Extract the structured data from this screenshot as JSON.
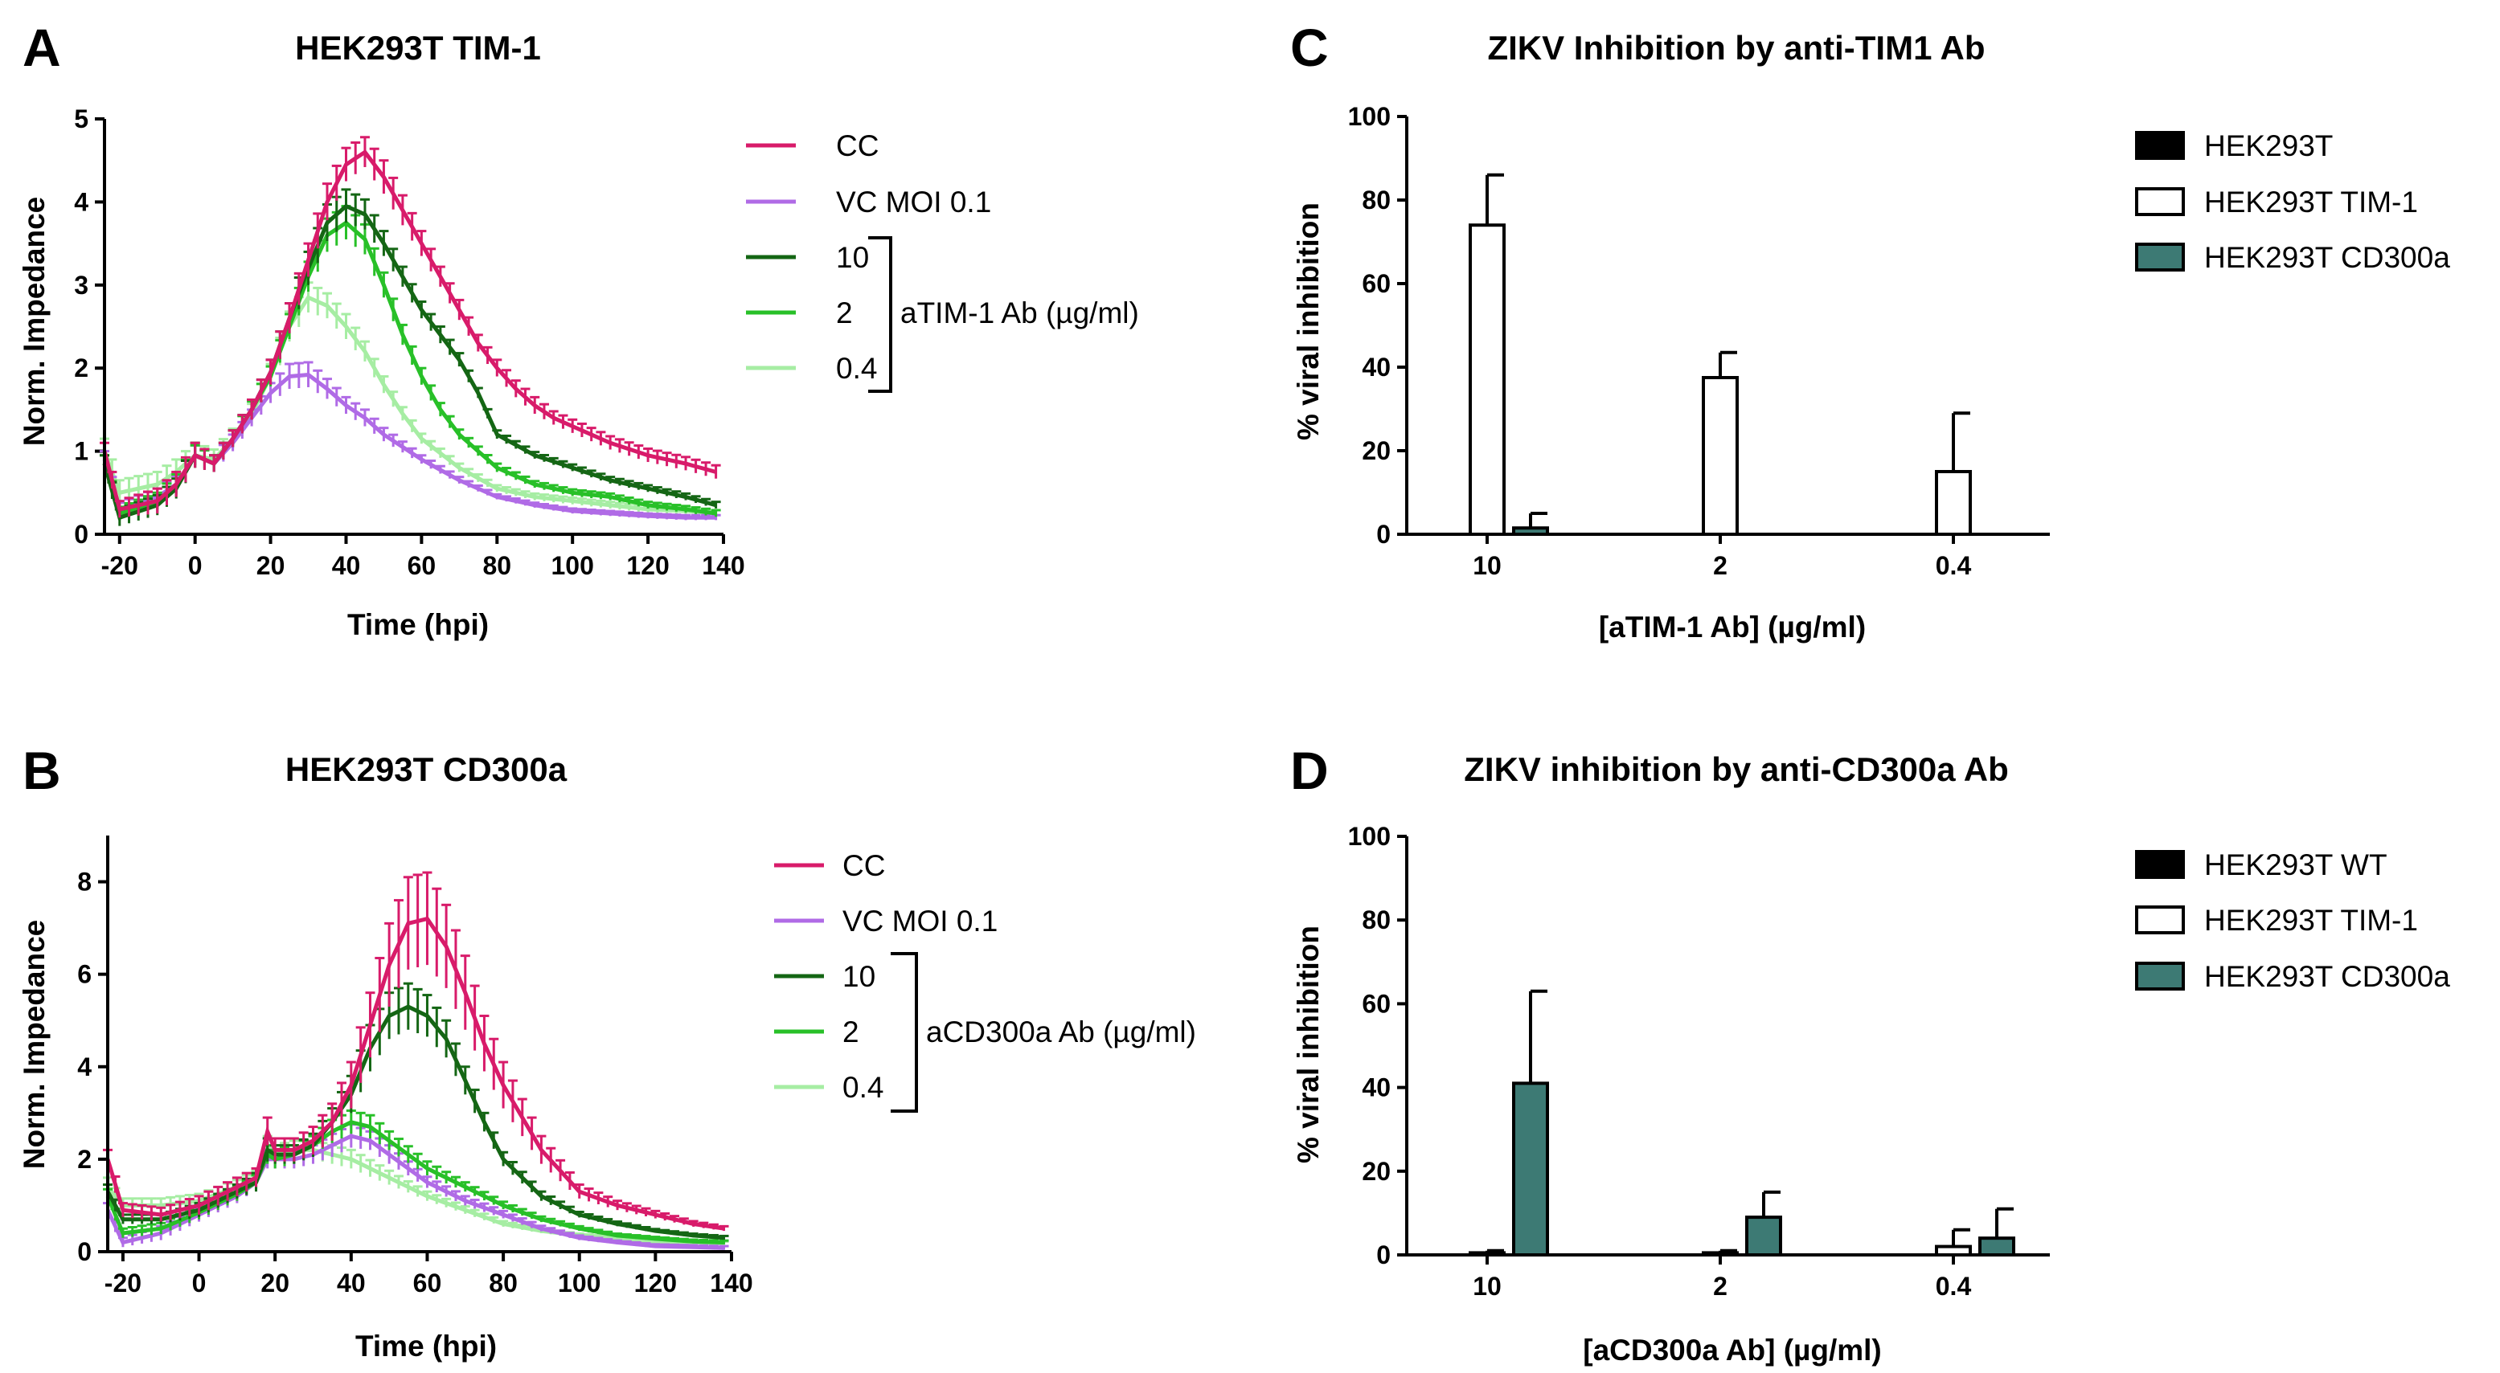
{
  "panels": [
    {
      "letter": "A"
    },
    {
      "letter": "B"
    },
    {
      "letter": "C"
    },
    {
      "letter": "D"
    }
  ],
  "colors": {
    "CC": "#d81b6a",
    "VC": "#b06be6",
    "d10": "#146614",
    "d2": "#28c028",
    "d04": "#a6eda3",
    "wt": "#000000",
    "tim1": "#ffffff",
    "cd300a": "#3d7a74"
  },
  "chart_data": [
    {
      "id": "A",
      "type": "line",
      "title": "HEK293T TIM-1",
      "xlabel": "Time (hpi)",
      "ylabel": "Norm. Impedance",
      "xlim": [
        -24,
        140
      ],
      "ylim": [
        0,
        5
      ],
      "xticks": [
        -20,
        0,
        20,
        40,
        60,
        80,
        100,
        120,
        140
      ],
      "yticks": [
        0,
        1,
        2,
        3,
        4,
        5
      ],
      "legend_group_label": "aTIM-1 Ab (µg/ml)",
      "series": [
        {
          "name": "CC",
          "color_key": "CC",
          "x": [
            -24,
            -20,
            -10,
            -5,
            0,
            5,
            10,
            15,
            20,
            25,
            30,
            35,
            40,
            45,
            50,
            55,
            60,
            65,
            70,
            75,
            80,
            85,
            90,
            95,
            100,
            110,
            120,
            130,
            138
          ],
          "y": [
            1.0,
            0.3,
            0.4,
            0.6,
            0.95,
            0.85,
            1.15,
            1.5,
            1.95,
            2.6,
            3.3,
            4.0,
            4.45,
            4.6,
            4.3,
            3.9,
            3.5,
            3.1,
            2.7,
            2.3,
            2.0,
            1.75,
            1.55,
            1.4,
            1.3,
            1.1,
            0.95,
            0.85,
            0.75
          ],
          "err": [
            0.1,
            0.1,
            0.15,
            0.15,
            0.15,
            0.1,
            0.1,
            0.12,
            0.15,
            0.18,
            0.2,
            0.22,
            0.2,
            0.18,
            0.2,
            0.18,
            0.15,
            0.12,
            0.12,
            0.1,
            0.1,
            0.1,
            0.1,
            0.08,
            0.08,
            0.08,
            0.08,
            0.08,
            0.08
          ]
        },
        {
          "name": "VC MOI 0.1",
          "color_key": "VC",
          "x": [
            -24,
            -20,
            -10,
            -5,
            0,
            5,
            10,
            15,
            20,
            25,
            30,
            35,
            40,
            45,
            50,
            60,
            70,
            80,
            90,
            100,
            110,
            120,
            130,
            138
          ],
          "y": [
            0.9,
            0.3,
            0.45,
            0.6,
            0.95,
            0.85,
            1.1,
            1.4,
            1.7,
            1.9,
            1.92,
            1.75,
            1.55,
            1.4,
            1.2,
            0.9,
            0.65,
            0.45,
            0.35,
            0.28,
            0.25,
            0.22,
            0.2,
            0.2
          ],
          "err": [
            0.1,
            0.08,
            0.1,
            0.1,
            0.12,
            0.1,
            0.1,
            0.1,
            0.12,
            0.15,
            0.15,
            0.12,
            0.1,
            0.1,
            0.08,
            0.05,
            0.04,
            0.03,
            0.03,
            0.03,
            0.03,
            0.03,
            0.03,
            0.03
          ]
        },
        {
          "name": "10",
          "color_key": "d10",
          "x": [
            -24,
            -20,
            -10,
            -5,
            0,
            5,
            10,
            15,
            20,
            25,
            30,
            35,
            40,
            45,
            50,
            55,
            60,
            65,
            70,
            75,
            80,
            90,
            100,
            110,
            120,
            130,
            138
          ],
          "y": [
            0.85,
            0.2,
            0.35,
            0.55,
            0.95,
            0.85,
            1.15,
            1.5,
            1.95,
            2.6,
            3.2,
            3.75,
            3.95,
            3.85,
            3.5,
            3.1,
            2.7,
            2.4,
            2.1,
            1.7,
            1.2,
            0.95,
            0.8,
            0.65,
            0.55,
            0.45,
            0.35
          ],
          "err": [
            0.1,
            0.1,
            0.12,
            0.12,
            0.15,
            0.1,
            0.1,
            0.12,
            0.15,
            0.18,
            0.2,
            0.22,
            0.2,
            0.18,
            0.15,
            0.12,
            0.1,
            0.1,
            0.08,
            0.06,
            0.05,
            0.04,
            0.04,
            0.04,
            0.04,
            0.04,
            0.04
          ]
        },
        {
          "name": "2",
          "color_key": "d2",
          "x": [
            -24,
            -20,
            -10,
            -5,
            0,
            5,
            10,
            15,
            20,
            25,
            30,
            35,
            40,
            45,
            50,
            55,
            60,
            65,
            70,
            80,
            90,
            100,
            110,
            120,
            130,
            138
          ],
          "y": [
            0.85,
            0.25,
            0.4,
            0.6,
            0.95,
            0.85,
            1.15,
            1.5,
            1.9,
            2.5,
            3.1,
            3.6,
            3.75,
            3.55,
            3.0,
            2.4,
            1.9,
            1.5,
            1.2,
            0.8,
            0.6,
            0.5,
            0.45,
            0.35,
            0.3,
            0.25
          ],
          "err": [
            0.1,
            0.08,
            0.1,
            0.12,
            0.12,
            0.1,
            0.1,
            0.1,
            0.12,
            0.15,
            0.18,
            0.2,
            0.2,
            0.18,
            0.15,
            0.12,
            0.1,
            0.08,
            0.06,
            0.05,
            0.04,
            0.04,
            0.04,
            0.04,
            0.04,
            0.04
          ]
        },
        {
          "name": "0.4",
          "color_key": "d04",
          "x": [
            -24,
            -20,
            -10,
            -5,
            0,
            5,
            10,
            15,
            20,
            25,
            30,
            35,
            40,
            45,
            50,
            55,
            60,
            70,
            80,
            90,
            100,
            110,
            120,
            130,
            138
          ],
          "y": [
            1.0,
            0.5,
            0.6,
            0.75,
            0.95,
            0.9,
            1.15,
            1.45,
            1.9,
            2.5,
            2.85,
            2.75,
            2.5,
            2.2,
            1.8,
            1.45,
            1.15,
            0.8,
            0.55,
            0.45,
            0.4,
            0.35,
            0.3,
            0.28,
            0.25
          ],
          "err": [
            0.15,
            0.15,
            0.15,
            0.15,
            0.15,
            0.12,
            0.12,
            0.12,
            0.15,
            0.18,
            0.18,
            0.15,
            0.15,
            0.12,
            0.1,
            0.08,
            0.06,
            0.05,
            0.04,
            0.04,
            0.04,
            0.04,
            0.04,
            0.04,
            0.04
          ]
        }
      ]
    },
    {
      "id": "B",
      "type": "line",
      "title": "HEK293T CD300a",
      "xlabel": "Time (hpi)",
      "ylabel": "Norm. Impedance",
      "xlim": [
        -24,
        140
      ],
      "ylim": [
        0,
        9
      ],
      "xticks": [
        -20,
        0,
        20,
        40,
        60,
        80,
        100,
        120,
        140
      ],
      "yticks": [
        0,
        2,
        4,
        6,
        8
      ],
      "legend_group_label": "aCD300a Ab (µg/ml)",
      "series": [
        {
          "name": "CC",
          "color_key": "CC",
          "x": [
            -24,
            -20,
            -10,
            0,
            10,
            15,
            18,
            20,
            25,
            30,
            35,
            40,
            45,
            50,
            55,
            60,
            65,
            70,
            75,
            80,
            90,
            100,
            110,
            120,
            130,
            138
          ],
          "y": [
            2.0,
            0.9,
            0.8,
            1.0,
            1.4,
            1.6,
            2.6,
            2.2,
            2.2,
            2.4,
            2.8,
            3.6,
            4.9,
            6.2,
            7.1,
            7.2,
            6.6,
            5.6,
            4.5,
            3.6,
            2.2,
            1.3,
            1.0,
            0.8,
            0.6,
            0.5
          ],
          "err": [
            0.2,
            0.15,
            0.15,
            0.2,
            0.2,
            0.2,
            0.3,
            0.25,
            0.25,
            0.3,
            0.4,
            0.5,
            0.7,
            0.9,
            1.0,
            1.0,
            0.9,
            0.8,
            0.6,
            0.5,
            0.3,
            0.15,
            0.1,
            0.08,
            0.06,
            0.05
          ]
        },
        {
          "name": "VC MOI 0.1",
          "color_key": "VC",
          "x": [
            -24,
            -20,
            -10,
            0,
            10,
            15,
            18,
            20,
            25,
            30,
            35,
            40,
            45,
            50,
            55,
            60,
            70,
            80,
            90,
            100,
            110,
            120,
            130,
            138
          ],
          "y": [
            0.9,
            0.2,
            0.4,
            0.8,
            1.2,
            1.5,
            2.0,
            2.0,
            2.0,
            2.1,
            2.3,
            2.5,
            2.4,
            2.1,
            1.8,
            1.5,
            1.1,
            0.8,
            0.5,
            0.3,
            0.2,
            0.12,
            0.1,
            0.08
          ],
          "err": [
            0.15,
            0.1,
            0.15,
            0.15,
            0.15,
            0.15,
            0.2,
            0.2,
            0.2,
            0.2,
            0.25,
            0.25,
            0.2,
            0.2,
            0.15,
            0.12,
            0.1,
            0.08,
            0.06,
            0.05,
            0.04,
            0.04,
            0.04,
            0.04
          ]
        },
        {
          "name": "10",
          "color_key": "d10",
          "x": [
            -24,
            -20,
            -10,
            0,
            10,
            15,
            18,
            20,
            25,
            30,
            35,
            40,
            45,
            50,
            55,
            60,
            65,
            70,
            75,
            80,
            90,
            100,
            110,
            120,
            130,
            138
          ],
          "y": [
            1.3,
            0.7,
            0.7,
            0.9,
            1.3,
            1.5,
            2.2,
            2.1,
            2.1,
            2.3,
            2.8,
            3.4,
            4.4,
            5.1,
            5.3,
            5.1,
            4.6,
            3.7,
            2.8,
            2.0,
            1.2,
            0.8,
            0.6,
            0.45,
            0.35,
            0.3
          ],
          "err": [
            0.15,
            0.1,
            0.1,
            0.15,
            0.15,
            0.2,
            0.25,
            0.2,
            0.2,
            0.25,
            0.3,
            0.4,
            0.5,
            0.5,
            0.5,
            0.45,
            0.4,
            0.3,
            0.2,
            0.15,
            0.1,
            0.06,
            0.05,
            0.04,
            0.04,
            0.04
          ]
        },
        {
          "name": "2",
          "color_key": "d2",
          "x": [
            -24,
            -20,
            -10,
            0,
            10,
            15,
            18,
            20,
            25,
            30,
            35,
            40,
            45,
            50,
            55,
            60,
            70,
            80,
            90,
            100,
            110,
            120,
            130,
            138
          ],
          "y": [
            1.2,
            0.4,
            0.5,
            0.85,
            1.25,
            1.5,
            2.1,
            2.0,
            2.1,
            2.3,
            2.6,
            2.8,
            2.7,
            2.4,
            2.1,
            1.8,
            1.4,
            1.0,
            0.7,
            0.5,
            0.35,
            0.28,
            0.22,
            0.2
          ],
          "err": [
            0.15,
            0.1,
            0.12,
            0.15,
            0.15,
            0.15,
            0.2,
            0.2,
            0.2,
            0.2,
            0.25,
            0.25,
            0.25,
            0.2,
            0.18,
            0.15,
            0.1,
            0.08,
            0.06,
            0.05,
            0.04,
            0.04,
            0.04,
            0.04
          ]
        },
        {
          "name": "0.4",
          "color_key": "d04",
          "x": [
            -24,
            -20,
            -10,
            0,
            10,
            15,
            18,
            20,
            25,
            30,
            35,
            40,
            45,
            50,
            55,
            60,
            70,
            80,
            90,
            100,
            110,
            120,
            130,
            138
          ],
          "y": [
            1.4,
            1.0,
            1.0,
            1.1,
            1.4,
            1.6,
            2.3,
            2.1,
            2.2,
            2.2,
            2.1,
            2.0,
            1.8,
            1.6,
            1.4,
            1.2,
            0.9,
            0.6,
            0.45,
            0.35,
            0.28,
            0.22,
            0.2,
            0.18
          ],
          "err": [
            0.2,
            0.15,
            0.15,
            0.15,
            0.15,
            0.15,
            0.2,
            0.2,
            0.2,
            0.2,
            0.2,
            0.2,
            0.18,
            0.15,
            0.12,
            0.1,
            0.08,
            0.06,
            0.05,
            0.04,
            0.04,
            0.04,
            0.04,
            0.04
          ]
        }
      ]
    },
    {
      "id": "C",
      "type": "bar",
      "title": "ZIKV Inhibition by anti-TIM1 Ab",
      "xlabel": "[aTIM-1 Ab] (µg/ml)",
      "ylabel": "% viral inhibition",
      "ylim": [
        0,
        100
      ],
      "yticks": [
        0,
        20,
        40,
        60,
        80,
        100
      ],
      "categories": [
        "10",
        "2",
        "0.4"
      ],
      "series": [
        {
          "name": "HEK293T",
          "fill_key": "wt",
          "values": [
            0,
            0,
            0
          ],
          "err": [
            0,
            0,
            0
          ]
        },
        {
          "name": "HEK293T TIM-1",
          "fill_key": "tim1",
          "values": [
            74,
            37.5,
            15
          ],
          "err": [
            12,
            6,
            14
          ]
        },
        {
          "name": "HEK293T CD300a",
          "fill_key": "cd300a",
          "values": [
            1.5,
            0,
            0
          ],
          "err": [
            3.5,
            0,
            0
          ]
        }
      ]
    },
    {
      "id": "D",
      "type": "bar",
      "title": "ZIKV inhibition by anti-CD300a Ab",
      "xlabel": "[aCD300a Ab] (µg/ml)",
      "ylabel": "% viral inhibition",
      "ylim": [
        0,
        100
      ],
      "yticks": [
        0,
        20,
        40,
        60,
        80,
        100
      ],
      "categories": [
        "10",
        "2",
        "0.4"
      ],
      "series": [
        {
          "name": "HEK293T WT",
          "fill_key": "wt",
          "values": [
            0,
            0,
            0
          ],
          "err": [
            0,
            0,
            0
          ]
        },
        {
          "name": "HEK293T TIM-1",
          "fill_key": "tim1",
          "values": [
            0.5,
            0.5,
            2
          ],
          "err": [
            0.5,
            0.5,
            4
          ]
        },
        {
          "name": "HEK293T CD300a",
          "fill_key": "cd300a",
          "values": [
            41,
            9,
            4
          ],
          "err": [
            22,
            6,
            7
          ]
        }
      ]
    }
  ]
}
